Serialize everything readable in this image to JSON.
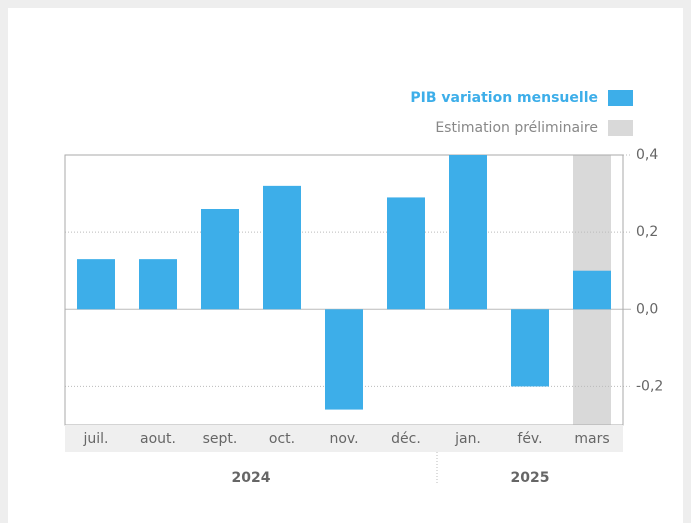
{
  "chart_data": {
    "type": "bar",
    "categories": [
      "juil.",
      "aout.",
      "sept.",
      "oct.",
      "nov.",
      "déc.",
      "jan.",
      "fév.",
      "mars"
    ],
    "series": [
      {
        "name": "PIB variation mensuelle",
        "color": "#3daee9",
        "values": [
          0.13,
          0.13,
          0.26,
          0.32,
          -0.26,
          0.29,
          0.4,
          -0.2,
          0.1
        ]
      }
    ],
    "highlight": {
      "name": "Estimation préliminaire",
      "color": "#d9d9d9",
      "category": "mars"
    },
    "groups": [
      {
        "label": "2024",
        "count": 6
      },
      {
        "label": "2025",
        "count": 3
      }
    ],
    "ylim": [
      -0.3,
      0.4
    ],
    "yticks": [
      {
        "value": -0.2,
        "label": "-0,2"
      },
      {
        "value": 0,
        "label": "0,0"
      },
      {
        "value": 0.2,
        "label": "0,2"
      },
      {
        "value": 0.4,
        "label": "0,4"
      }
    ],
    "grid": true
  }
}
